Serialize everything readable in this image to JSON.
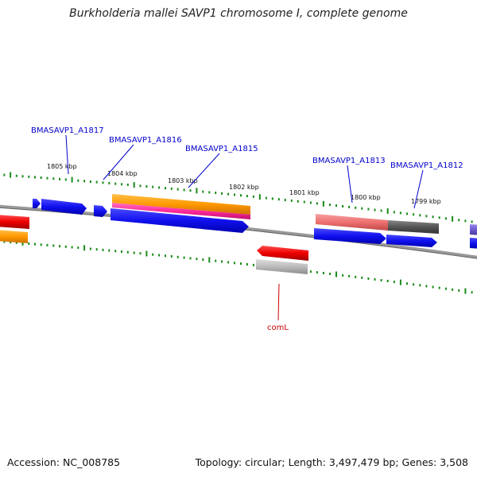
{
  "title": "Burkholderia mallei SAVP1 chromosome I, complete genome",
  "footer": {
    "accession": "Accession: NC_008785",
    "topology": "Topology: circular; Length: 3,497,479 bp; Genes: 3,508"
  },
  "ticks": [
    "1805 kbp",
    "1804 kbp",
    "1803 kbp",
    "1802 kbp",
    "1801 kbp",
    "1800 kbp",
    "1799 kbp"
  ],
  "gene_labels": [
    {
      "id": "A1817",
      "text": "BMASAVP1_A1817",
      "color": "#0000cc"
    },
    {
      "id": "A1816",
      "text": "BMASAVP1_A1816",
      "color": "#0000cc"
    },
    {
      "id": "A1815",
      "text": "BMASAVP1_A1815",
      "color": "#0000cc"
    },
    {
      "id": "A1813",
      "text": "BMASAVP1_A1813",
      "color": "#0000cc"
    },
    {
      "id": "A1812",
      "text": "BMASAVP1_A1812",
      "color": "#0000cc"
    },
    {
      "id": "comL",
      "text": "comL",
      "color": "#cc0000"
    }
  ],
  "colors": {
    "backbone": "#8a8a8a",
    "tick": "#1a8a1a",
    "gene_blue": "#1010ee",
    "gene_orange": "#ff9900",
    "gene_pink": "#ff2a9a",
    "gene_red": "#ee0000",
    "gene_salmon": "#f07a7a",
    "gene_gray": "#bbbbbb",
    "gene_dark": "#555555",
    "gene_purple": "#6a5acd"
  }
}
